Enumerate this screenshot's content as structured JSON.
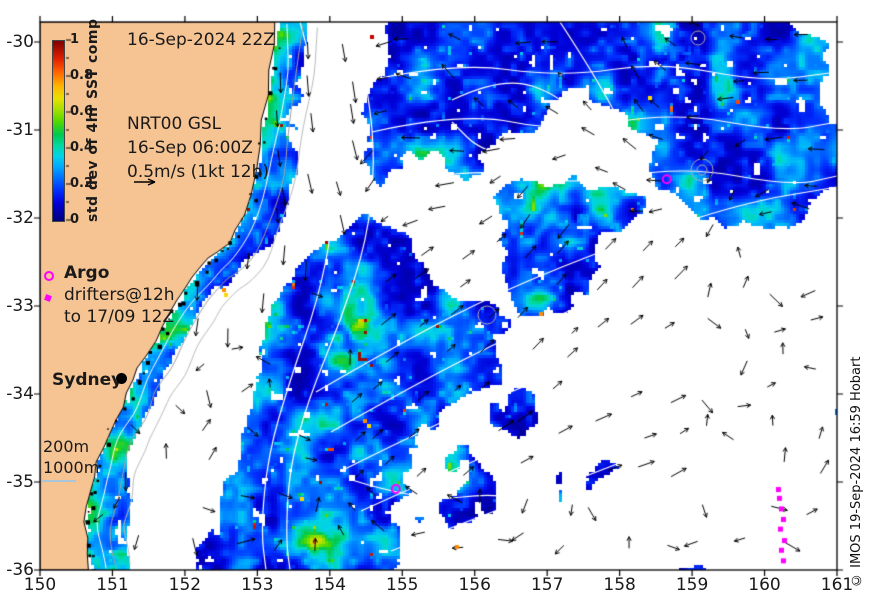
{
  "title": {
    "text": "16-Sep-2024 22Z"
  },
  "colorbar": {
    "label": "std dev of 4hr SST comp",
    "ticks": [
      "1",
      "0.8",
      "0.6",
      "0.4",
      "0.2",
      "0"
    ],
    "tick_values": [
      1,
      0.8,
      0.6,
      0.4,
      0.2,
      0
    ],
    "stops": [
      {
        "v": 0.0,
        "c": "#000080"
      },
      {
        "v": 0.05,
        "c": "#0000A8"
      },
      {
        "v": 0.1,
        "c": "#0000D8"
      },
      {
        "v": 0.17,
        "c": "#0030FF"
      },
      {
        "v": 0.24,
        "c": "#0070FF"
      },
      {
        "v": 0.3,
        "c": "#00A8FF"
      },
      {
        "v": 0.36,
        "c": "#00D4E8"
      },
      {
        "v": 0.42,
        "c": "#00D8A0"
      },
      {
        "v": 0.48,
        "c": "#00C850"
      },
      {
        "v": 0.55,
        "c": "#50D800"
      },
      {
        "v": 0.62,
        "c": "#A8E000"
      },
      {
        "v": 0.68,
        "c": "#E8E000"
      },
      {
        "v": 0.75,
        "c": "#FFB400"
      },
      {
        "v": 0.83,
        "c": "#FF6000"
      },
      {
        "v": 0.9,
        "c": "#E02000"
      },
      {
        "v": 1.0,
        "c": "#800000"
      }
    ]
  },
  "info": {
    "line1": "NRT00 GSL",
    "line2": "16-Sep 06:00Z",
    "line3": "0.5m/s (1kt 12h)"
  },
  "legend": {
    "argo_label": "Argo",
    "drifters_line1": "drifters@12h",
    "drifters_line2": "to 17/09 12Z",
    "marker_color": "#FF00FF"
  },
  "place": {
    "sydney": "Sydney"
  },
  "depth": {
    "l200": "200m",
    "l1000": "1000m",
    "sample_line_color": "#A9C6D9"
  },
  "axes": {
    "x": {
      "min": 150,
      "max": 161,
      "tick_labels": [
        "150",
        "151",
        "152",
        "153",
        "154",
        "155",
        "156",
        "157",
        "158",
        "159",
        "160",
        "161"
      ]
    },
    "y": {
      "tick_labels": [
        "-30",
        "-31",
        "-32",
        "-33",
        "-34",
        "-35",
        "-36"
      ],
      "tick_values": [
        -30,
        -31,
        -32,
        -33,
        -34,
        -35,
        -36
      ]
    }
  },
  "credit": {
    "text": "© IMOS 19-Sep-2024 16:59 Hobart"
  },
  "map": {
    "land_color": "#F6C493",
    "no_data_color": "#FFFFFF",
    "ssh_contour_color": "#FFFFFF",
    "bathy_contour_color": "#A0A0A0",
    "arrow_color": "#000000",
    "coast_color": "#000000",
    "argo_floats": [
      {
        "lon": 158.65,
        "lat": -31.56
      },
      {
        "lon": 154.91,
        "lat": -35.08
      }
    ],
    "drifter_track": [
      {
        "lon": 160.185,
        "lat": -35.08
      },
      {
        "lon": 160.199,
        "lat": -35.18
      },
      {
        "lon": 160.227,
        "lat": -35.3
      },
      {
        "lon": 160.254,
        "lat": -35.42
      },
      {
        "lon": 160.213,
        "lat": -35.53
      },
      {
        "lon": 160.268,
        "lat": -35.66
      },
      {
        "lon": 160.227,
        "lat": -35.77
      },
      {
        "lon": 160.254,
        "lat": -35.89
      }
    ]
  }
}
